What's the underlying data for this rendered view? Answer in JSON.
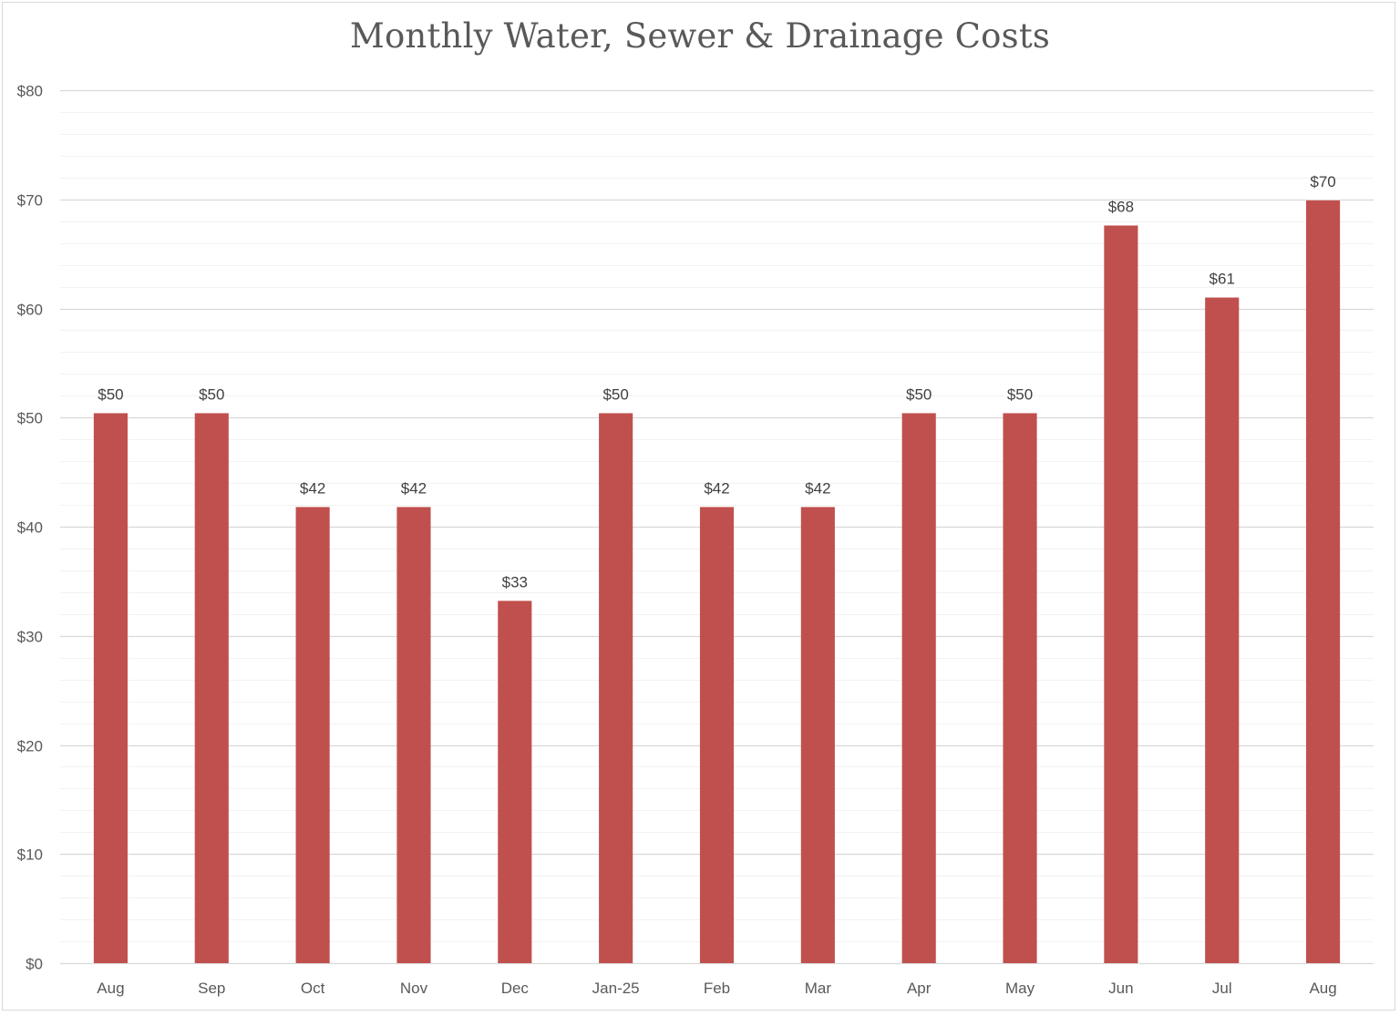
{
  "chart_data": {
    "type": "bar",
    "title": "Monthly Water, Sewer & Drainage Costs",
    "xlabel": "",
    "ylabel": "",
    "categories": [
      "Aug",
      "Sep",
      "Oct",
      "Nov",
      "Dec",
      "Jan-25",
      "Feb",
      "Mar",
      "Apr",
      "May",
      "Jun",
      "Jul",
      "Aug"
    ],
    "values": [
      50.4,
      50.4,
      41.8,
      41.8,
      33.2,
      50.4,
      41.8,
      41.8,
      50.4,
      50.4,
      67.6,
      61.0,
      69.9
    ],
    "data_labels": [
      "$50",
      "$50",
      "$42",
      "$42",
      "$33",
      "$50",
      "$42",
      "$42",
      "$50",
      "$50",
      "$68",
      "$61",
      "$70"
    ],
    "ylim": [
      0,
      80
    ],
    "y_major_step": 10,
    "y_minor_step": 2,
    "y_tick_labels": [
      "$0",
      "$10",
      "$20",
      "$30",
      "$40",
      "$50",
      "$60",
      "$70",
      "$80"
    ],
    "grid": true,
    "legend": "none",
    "bar_color": "#c0504d",
    "gridline_major_color": "#d9d9d9",
    "gridline_minor_color": "#f2f2f2"
  }
}
